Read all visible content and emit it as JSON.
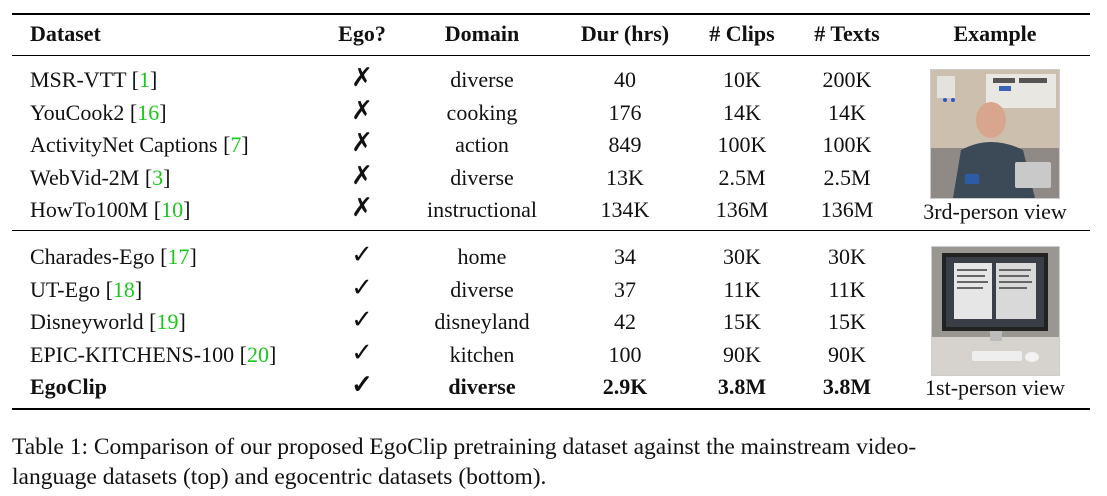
{
  "table": {
    "headers": [
      "Dataset",
      "Ego?",
      "Domain",
      "Dur (hrs)",
      "# Clips",
      "# Texts",
      "Example"
    ],
    "top_rows": [
      {
        "name": "MSR-VTT",
        "cite": "1",
        "ego": "✗",
        "domain": "diverse",
        "dur": "40",
        "clips": "10K",
        "texts": "200K"
      },
      {
        "name": "YouCook2",
        "cite": "16",
        "ego": "✗",
        "domain": "cooking",
        "dur": "176",
        "clips": "14K",
        "texts": "14K"
      },
      {
        "name": "ActivityNet Captions",
        "cite": "7",
        "ego": "✗",
        "domain": "action",
        "dur": "849",
        "clips": "100K",
        "texts": "100K"
      },
      {
        "name": "WebVid-2M",
        "cite": "3",
        "ego": "✗",
        "domain": "diverse",
        "dur": "13K",
        "clips": "2.5M",
        "texts": "2.5M"
      },
      {
        "name": "HowTo100M",
        "cite": "10",
        "ego": "✗",
        "domain": "instructional",
        "dur": "134K",
        "clips": "136M",
        "texts": "136M"
      }
    ],
    "bottom_rows": [
      {
        "name": "Charades-Ego",
        "cite": "17",
        "ego": "✓",
        "domain": "home",
        "dur": "34",
        "clips": "30K",
        "texts": "30K"
      },
      {
        "name": "UT-Ego",
        "cite": "18",
        "ego": "✓",
        "domain": "diverse",
        "dur": "37",
        "clips": "11K",
        "texts": "11K"
      },
      {
        "name": "Disneyworld",
        "cite": "19",
        "ego": "✓",
        "domain": "disneyland",
        "dur": "42",
        "clips": "15K",
        "texts": "15K"
      },
      {
        "name": "EPIC-KITCHENS-100",
        "cite": "20",
        "ego": "✓",
        "domain": "kitchen",
        "dur": "100",
        "clips": "90K",
        "texts": "90K"
      }
    ],
    "egoclip_row": {
      "name": "EgoClip",
      "ego": "✓",
      "domain": "diverse",
      "dur": "2.9K",
      "clips": "3.8M",
      "texts": "3.8M"
    },
    "example_top_label": "3rd-person view",
    "example_bottom_label": "1st-person view"
  },
  "caption": {
    "line1": "Table 1: Comparison of our proposed EgoClip pretraining dataset against the mainstream video-",
    "line2": "language datasets (top) and egocentric datasets (bottom)."
  }
}
